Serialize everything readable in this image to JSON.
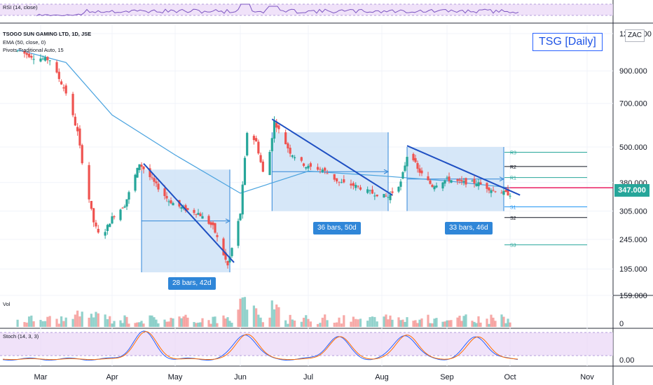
{
  "chart_title_box": "TSG [Daily]",
  "currency_badge": "ZAC",
  "legend": {
    "symbol": "TSOGO SUN GAMING LTD, 1D, JSE",
    "ema": "EMA (50, close, 0)",
    "pivots": "Pivots Traditional Auto, 15"
  },
  "rsi_label": "RSI (14, close)",
  "vol_label": "Vol",
  "stoch_label": "Stoch (14, 3, 3)",
  "price_axis_labels": [
    "1200.000",
    "900.000",
    "700.000",
    "500.000",
    "380.000",
    "305.000",
    "245.000",
    "195.000",
    "159.000"
  ],
  "vol_axis_label": "0",
  "stoch_axis_label": "0.00",
  "last_price": "347.000",
  "x_axis_labels": [
    "Mar",
    "Apr",
    "May",
    "Jun",
    "Jul",
    "Aug",
    "Sep",
    "Oct",
    "Nov"
  ],
  "pivot_labels": [
    "R3",
    "R2",
    "R1",
    "S1",
    "S2",
    "S3"
  ],
  "ranges": [
    {
      "label": "28 bars, 42d"
    },
    {
      "label": "36 bars, 50d"
    },
    {
      "label": "33 bars, 46d"
    }
  ],
  "colors": {
    "up": "#26a69a",
    "down": "#ef5350",
    "ema": "#4aa3df",
    "range_fill": "#cfe3f7",
    "trendline": "#1e4fc2",
    "pivot_r": "#26a69a",
    "pivot_s": "#26a69a",
    "pivot_p": "#e91e63",
    "osc_band": "#e9d5f7"
  },
  "chart_data": {
    "type": "candlestick",
    "y_scale": "log",
    "ylim": [
      159,
      1200
    ],
    "x_ticks": [
      "Mar",
      "Apr",
      "May",
      "Jun",
      "Jul",
      "Aug",
      "Sep",
      "Oct",
      "Nov"
    ],
    "close_series_approx": [
      {
        "date": "Feb-20",
        "close": 1050
      },
      {
        "date": "Feb-27",
        "close": 1000
      },
      {
        "date": "Mar-05",
        "close": 980
      },
      {
        "date": "Mar-12",
        "close": 760
      },
      {
        "date": "Mar-17",
        "close": 560
      },
      {
        "date": "Mar-20",
        "close": 400
      },
      {
        "date": "Mar-24",
        "close": 280
      },
      {
        "date": "Mar-27",
        "close": 245
      },
      {
        "date": "Apr-01",
        "close": 290
      },
      {
        "date": "Apr-07",
        "close": 320
      },
      {
        "date": "Apr-14",
        "close": 440
      },
      {
        "date": "Apr-21",
        "close": 380
      },
      {
        "date": "Apr-28",
        "close": 330
      },
      {
        "date": "May-05",
        "close": 310
      },
      {
        "date": "May-12",
        "close": 300
      },
      {
        "date": "May-19",
        "close": 270
      },
      {
        "date": "May-26",
        "close": 200
      },
      {
        "date": "Jun-01",
        "close": 300
      },
      {
        "date": "Jun-04",
        "close": 560
      },
      {
        "date": "Jun-08",
        "close": 520
      },
      {
        "date": "Jun-12",
        "close": 380
      },
      {
        "date": "Jun-16",
        "close": 610
      },
      {
        "date": "Jun-23",
        "close": 480
      },
      {
        "date": "Jun-30",
        "close": 430
      },
      {
        "date": "Jul-07",
        "close": 420
      },
      {
        "date": "Jul-14",
        "close": 380
      },
      {
        "date": "Jul-21",
        "close": 370
      },
      {
        "date": "Jul-28",
        "close": 350
      },
      {
        "date": "Aug-04",
        "close": 340
      },
      {
        "date": "Aug-10",
        "close": 380
      },
      {
        "date": "Aug-14",
        "close": 500
      },
      {
        "date": "Aug-18",
        "close": 420
      },
      {
        "date": "Aug-25",
        "close": 370
      },
      {
        "date": "Sep-01",
        "close": 390
      },
      {
        "date": "Sep-08",
        "close": 380
      },
      {
        "date": "Sep-15",
        "close": 380
      },
      {
        "date": "Sep-22",
        "close": 360
      },
      {
        "date": "Sep-29",
        "close": 350
      },
      {
        "date": "Oct-01",
        "close": 347
      }
    ],
    "ema_approx": [
      {
        "date": "Feb-20",
        "value": 1060
      },
      {
        "date": "Mar-12",
        "value": 960
      },
      {
        "date": "Apr-01",
        "value": 640
      },
      {
        "date": "May-01",
        "value": 470
      },
      {
        "date": "Jun-01",
        "value": 350
      },
      {
        "date": "Jul-01",
        "value": 415
      },
      {
        "date": "Aug-01",
        "value": 400
      },
      {
        "date": "Sep-01",
        "value": 385
      },
      {
        "date": "Oct-01",
        "value": 365
      }
    ],
    "measure_ranges": [
      {
        "label": "28 bars, 42d",
        "start": "Apr-15",
        "end": "May-27",
        "high": 420,
        "low": 190
      },
      {
        "label": "36 bars, 50d",
        "start": "Jun-15",
        "end": "Aug-04",
        "high": 560,
        "low": 305
      },
      {
        "label": "33 bars, 46d",
        "start": "Aug-13",
        "end": "Sep-28",
        "high": 500,
        "low": 305
      }
    ],
    "pivots": {
      "R3": 480,
      "R2": 430,
      "R1": 395,
      "P": 365,
      "S1": 315,
      "S2": 290,
      "S3": 235
    }
  }
}
